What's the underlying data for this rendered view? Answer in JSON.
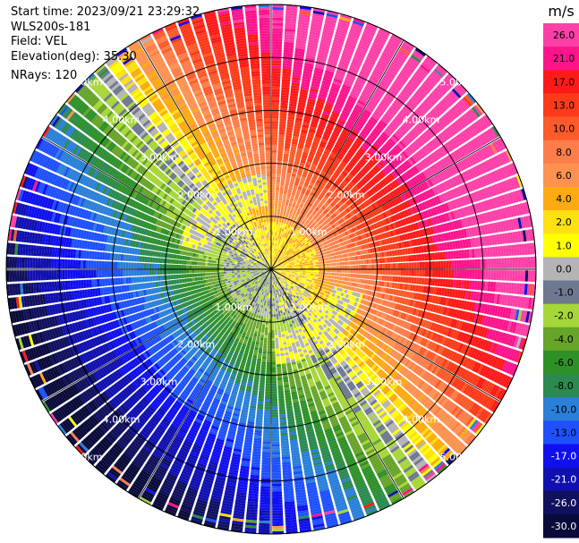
{
  "info": {
    "start_time": "Start time: 2023/09/21 23:29:32",
    "instrument": "WLS200s-181",
    "field": "Field: VEL",
    "elevation": "Elevation(deg): 35.30",
    "nrays": "NRays: 120"
  },
  "colorbar": {
    "unit": "m/s",
    "ticks": [
      "26.0",
      "21.0",
      "17.0",
      "13.0",
      "10.0",
      "8.0",
      "6.0",
      "4.0",
      "2.0",
      "1.0",
      "0.0",
      "-1.0",
      "-2.0",
      "-4.0",
      "-6.0",
      "-8.0",
      "-10.0",
      "-13.0",
      "-17.0",
      "-21.0",
      "-26.0",
      "-30.0"
    ],
    "colors": [
      "#ff3fa8",
      "#ff148c",
      "#ff1a1a",
      "#ff3a1a",
      "#ff5a2a",
      "#ff7d4a",
      "#ff9250",
      "#ffaa10",
      "#ffe010",
      "#ffff00",
      "#b4b4b4",
      "#6e7890",
      "#a6d637",
      "#66a42a",
      "#2e9128",
      "#2a8a50",
      "#2a7fd8",
      "#1e50ff",
      "#1010ee",
      "#1010b0",
      "#10105e",
      "#0a0a3a"
    ]
  },
  "chart_data": {
    "type": "ppi",
    "field": "VEL",
    "unit": "m/s",
    "nrays": 120,
    "range_rings_km": [
      1,
      2,
      3,
      4,
      5
    ],
    "range_ring_labels": [
      "1.00km",
      "2.00km",
      "3.00km",
      "4.00km",
      "5.00km"
    ],
    "spokes_deg": [
      0,
      30,
      60,
      90,
      120,
      150,
      180,
      210,
      240,
      270,
      300,
      330
    ],
    "vmin": -30,
    "vmax": 26,
    "pattern": "north-east sector positive (orange/red up to ~17 m/s), south-west sector negative (blue down to ~-10 m/s), near-zero grey band around 1.5 km, noisy outer gates beyond 5 km"
  }
}
